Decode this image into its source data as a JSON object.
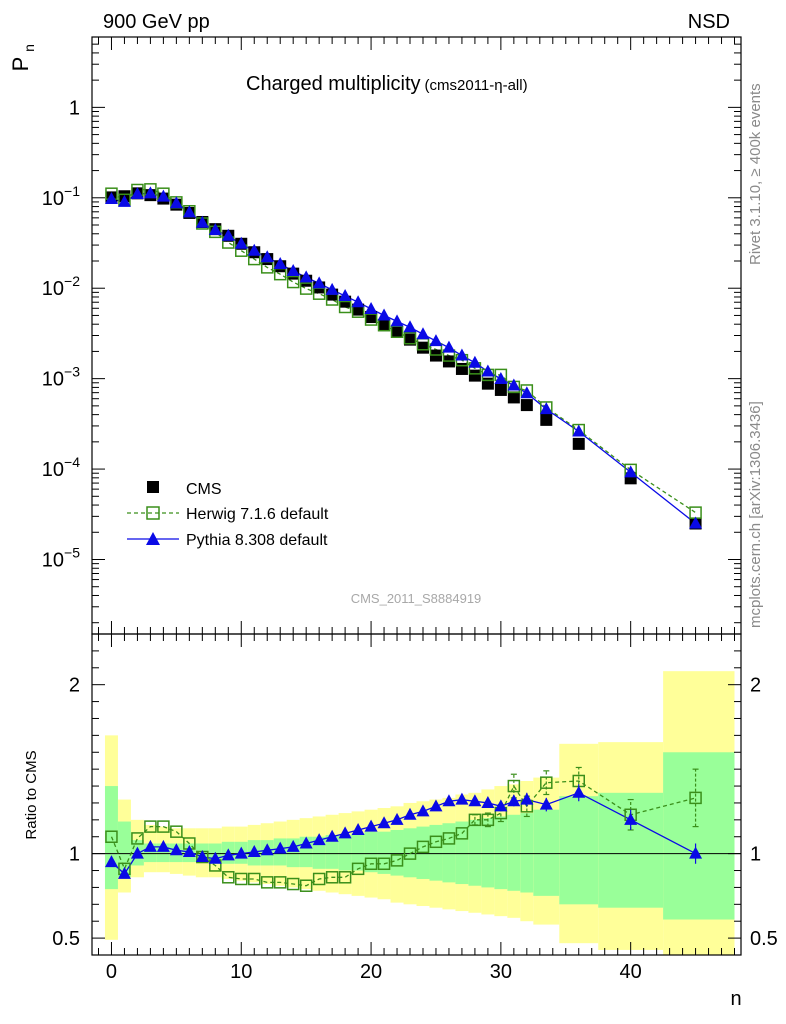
{
  "header": {
    "left": "900 GeV pp",
    "right": "NSD"
  },
  "side": {
    "rivet": "Rivet 3.1.10, ≥ 400k events",
    "mcplots": "mcplots.cern.ch [arXiv:1306.3436]"
  },
  "watermark": "CMS_2011_S8884919",
  "colors": {
    "cms": "#000000",
    "herwig": "#3a8f1a",
    "pythia": "#0a0ae6",
    "band_inner": "#99ff99",
    "band_outer": "#ffff99"
  },
  "chart_data": [
    {
      "type": "scatter",
      "panel": "main",
      "title": "Charged multiplicity",
      "subtitle": "(cms2011-η-all)",
      "ylabel": "P_n",
      "yscale": "log",
      "xlim": [
        -1.5,
        48.5
      ],
      "ylim": [
        1.5e-06,
        6
      ],
      "ytick_labels": [
        "1",
        "10^-1",
        "10^-2",
        "10^-3",
        "10^-4",
        "10^-5"
      ],
      "legend": {
        "position": "bottom-left",
        "entries": [
          "CMS",
          "Herwig 7.1.6 default",
          "Pythia 8.308 default"
        ]
      },
      "series": [
        {
          "name": "CMS",
          "style": "square-filled",
          "x": [
            0,
            1,
            2,
            3,
            4,
            5,
            6,
            7,
            8,
            9,
            10,
            11,
            12,
            13,
            14,
            15,
            16,
            17,
            18,
            19,
            20,
            21,
            22,
            23,
            24,
            25,
            26,
            27,
            28,
            29,
            30,
            31,
            32,
            33.5,
            36,
            40,
            45
          ],
          "y": [
            0.101,
            0.104,
            0.112,
            0.107,
            0.098,
            0.084,
            0.068,
            0.054,
            0.045,
            0.038,
            0.031,
            0.025,
            0.021,
            0.0175,
            0.0145,
            0.0121,
            0.0102,
            0.0085,
            0.0071,
            0.0058,
            0.0048,
            0.0039,
            0.0033,
            0.0027,
            0.0022,
            0.0018,
            0.00155,
            0.00128,
            0.00108,
            0.00088,
            0.00075,
            0.00062,
            0.00051,
            0.00035,
            0.00019,
            7.9e-05,
            2.5e-05
          ]
        },
        {
          "name": "Herwig 7.1.6 default",
          "style": "square-open-dashed",
          "x": [
            0,
            1,
            2,
            3,
            4,
            5,
            6,
            7,
            8,
            9,
            10,
            11,
            12,
            13,
            14,
            15,
            16,
            17,
            18,
            19,
            20,
            21,
            22,
            23,
            24,
            25,
            26,
            27,
            28,
            29,
            30,
            31,
            32,
            33.5,
            36,
            40,
            45
          ],
          "y": [
            0.111,
            0.095,
            0.122,
            0.124,
            0.111,
            0.089,
            0.071,
            0.052,
            0.042,
            0.032,
            0.026,
            0.021,
            0.017,
            0.0143,
            0.0117,
            0.0099,
            0.0087,
            0.0075,
            0.0062,
            0.0055,
            0.0045,
            0.0039,
            0.0033,
            0.0028,
            0.0024,
            0.0021,
            0.0018,
            0.0016,
            0.0013,
            0.0011,
            0.0011,
            0.00081,
            0.00074,
            0.00048,
            0.00027,
            9.8e-05,
            3.3e-05
          ]
        },
        {
          "name": "Pythia 8.308 default",
          "style": "triangle-filled-line",
          "x": [
            0,
            1,
            2,
            3,
            4,
            5,
            6,
            7,
            8,
            9,
            10,
            11,
            12,
            13,
            14,
            15,
            16,
            17,
            18,
            19,
            20,
            21,
            22,
            23,
            24,
            25,
            26,
            27,
            28,
            29,
            30,
            31,
            32,
            33.5,
            36,
            40,
            45
          ],
          "y": [
            0.097,
            0.09,
            0.11,
            0.112,
            0.103,
            0.087,
            0.069,
            0.053,
            0.044,
            0.038,
            0.031,
            0.026,
            0.022,
            0.0185,
            0.0155,
            0.0132,
            0.0113,
            0.0096,
            0.0082,
            0.007,
            0.0059,
            0.005,
            0.0043,
            0.0037,
            0.0031,
            0.0026,
            0.0022,
            0.0018,
            0.0015,
            0.0012,
            0.00099,
            0.00084,
            0.00069,
            0.00046,
            0.00026,
            9.2e-05,
            2.5e-05
          ]
        }
      ]
    },
    {
      "type": "scatter",
      "panel": "ratio",
      "ylabel": "Ratio to CMS",
      "xlabel": "n",
      "xlim": [
        -1.5,
        48.5
      ],
      "ylim": [
        0.4,
        2.3
      ],
      "xtick_labels": [
        "0",
        "10",
        "20",
        "30",
        "40"
      ],
      "ytick_labels": [
        "0.5",
        "1",
        "2"
      ],
      "reference_line": 1,
      "bins": [
        [
          -0.5,
          0.5
        ],
        [
          0.5,
          1.5
        ],
        [
          1.5,
          2.5
        ],
        [
          2.5,
          3.5
        ],
        [
          3.5,
          4.5
        ],
        [
          4.5,
          5.5
        ],
        [
          5.5,
          6.5
        ],
        [
          6.5,
          7.5
        ],
        [
          7.5,
          8.5
        ],
        [
          8.5,
          9.5
        ],
        [
          9.5,
          10.5
        ],
        [
          10.5,
          11.5
        ],
        [
          11.5,
          12.5
        ],
        [
          12.5,
          13.5
        ],
        [
          13.5,
          14.5
        ],
        [
          14.5,
          15.5
        ],
        [
          15.5,
          16.5
        ],
        [
          16.5,
          17.5
        ],
        [
          17.5,
          18.5
        ],
        [
          18.5,
          19.5
        ],
        [
          19.5,
          20.5
        ],
        [
          20.5,
          21.5
        ],
        [
          21.5,
          22.5
        ],
        [
          22.5,
          23.5
        ],
        [
          23.5,
          24.5
        ],
        [
          24.5,
          25.5
        ],
        [
          25.5,
          26.5
        ],
        [
          26.5,
          27.5
        ],
        [
          27.5,
          28.5
        ],
        [
          28.5,
          29.5
        ],
        [
          29.5,
          30.5
        ],
        [
          30.5,
          31.5
        ],
        [
          31.5,
          32.5
        ],
        [
          32.5,
          34.5
        ],
        [
          34.5,
          37.5
        ],
        [
          37.5,
          42.5
        ],
        [
          42.5,
          48
        ]
      ],
      "band_outer": {
        "lo": [
          0.49,
          0.77,
          0.86,
          0.89,
          0.89,
          0.88,
          0.87,
          0.86,
          0.86,
          0.85,
          0.84,
          0.83,
          0.82,
          0.81,
          0.8,
          0.79,
          0.78,
          0.77,
          0.76,
          0.75,
          0.74,
          0.73,
          0.71,
          0.7,
          0.69,
          0.68,
          0.67,
          0.66,
          0.65,
          0.64,
          0.63,
          0.62,
          0.6,
          0.58,
          0.47,
          0.43,
          0.33
        ],
        "hi": [
          1.7,
          1.32,
          1.2,
          1.17,
          1.16,
          1.15,
          1.15,
          1.15,
          1.15,
          1.16,
          1.16,
          1.17,
          1.18,
          1.19,
          1.2,
          1.21,
          1.22,
          1.23,
          1.24,
          1.25,
          1.26,
          1.27,
          1.28,
          1.3,
          1.31,
          1.32,
          1.33,
          1.35,
          1.36,
          1.38,
          1.4,
          1.41,
          1.43,
          1.45,
          1.65,
          1.66,
          2.08
        ]
      },
      "band_inner": {
        "lo": [
          0.79,
          0.86,
          0.93,
          0.95,
          0.95,
          0.95,
          0.95,
          0.95,
          0.94,
          0.94,
          0.94,
          0.93,
          0.93,
          0.93,
          0.92,
          0.92,
          0.91,
          0.91,
          0.9,
          0.9,
          0.89,
          0.88,
          0.87,
          0.86,
          0.85,
          0.84,
          0.83,
          0.82,
          0.81,
          0.8,
          0.79,
          0.78,
          0.77,
          0.75,
          0.7,
          0.68,
          0.61
        ],
        "hi": [
          1.4,
          1.19,
          1.08,
          1.06,
          1.06,
          1.06,
          1.06,
          1.06,
          1.06,
          1.07,
          1.07,
          1.08,
          1.08,
          1.09,
          1.09,
          1.1,
          1.1,
          1.11,
          1.11,
          1.12,
          1.13,
          1.13,
          1.14,
          1.15,
          1.16,
          1.17,
          1.18,
          1.19,
          1.2,
          1.21,
          1.22,
          1.23,
          1.24,
          1.26,
          1.34,
          1.36,
          1.6
        ]
      },
      "series": [
        {
          "name": "Herwig 7.1.6 default",
          "style": "square-open-dashed",
          "x": [
            0,
            1,
            2,
            3,
            4,
            5,
            6,
            7,
            8,
            9,
            10,
            11,
            12,
            13,
            14,
            15,
            16,
            17,
            18,
            19,
            20,
            21,
            22,
            23,
            24,
            25,
            26,
            27,
            28,
            29,
            30,
            31,
            32,
            33.5,
            36,
            40,
            45
          ],
          "y": [
            1.1,
            0.91,
            1.09,
            1.16,
            1.16,
            1.13,
            1.06,
            0.98,
            0.93,
            0.86,
            0.85,
            0.85,
            0.83,
            0.83,
            0.82,
            0.81,
            0.85,
            0.86,
            0.86,
            0.91,
            0.94,
            0.94,
            0.96,
            1.0,
            1.04,
            1.07,
            1.09,
            1.12,
            1.2,
            1.2,
            1.24,
            1.4,
            1.28,
            1.42,
            1.43,
            1.23,
            1.33
          ],
          "err": [
            0,
            0,
            0,
            0,
            0,
            0,
            0,
            0,
            0,
            0,
            0,
            0,
            0,
            0,
            0,
            0,
            0,
            0,
            0,
            0,
            0,
            0,
            0,
            0,
            0,
            0,
            0,
            0,
            0.03,
            0.04,
            0.05,
            0.07,
            0.06,
            0.07,
            0.08,
            0.09,
            0.17
          ]
        },
        {
          "name": "Pythia 8.308 default",
          "style": "triangle-filled-line",
          "x": [
            0,
            1,
            2,
            3,
            4,
            5,
            6,
            7,
            8,
            9,
            10,
            11,
            12,
            13,
            14,
            15,
            16,
            17,
            18,
            19,
            20,
            21,
            22,
            23,
            24,
            25,
            26,
            27,
            28,
            29,
            30,
            31,
            32,
            33.5,
            36,
            40,
            45
          ],
          "y": [
            0.95,
            0.88,
            1.0,
            1.04,
            1.04,
            1.02,
            1.01,
            0.98,
            0.97,
            0.99,
            1.0,
            1.01,
            1.02,
            1.03,
            1.04,
            1.06,
            1.08,
            1.1,
            1.12,
            1.14,
            1.16,
            1.18,
            1.2,
            1.23,
            1.25,
            1.28,
            1.31,
            1.32,
            1.31,
            1.3,
            1.28,
            1.31,
            1.32,
            1.29,
            1.36,
            1.2,
            1.0
          ],
          "err": [
            0,
            0,
            0,
            0,
            0,
            0,
            0,
            0,
            0,
            0,
            0,
            0,
            0,
            0,
            0,
            0,
            0,
            0,
            0,
            0,
            0,
            0,
            0,
            0,
            0,
            0,
            0,
            0,
            0,
            0,
            0.02,
            0.03,
            0.04,
            0.04,
            0.05,
            0.06,
            0.06
          ]
        }
      ]
    }
  ]
}
